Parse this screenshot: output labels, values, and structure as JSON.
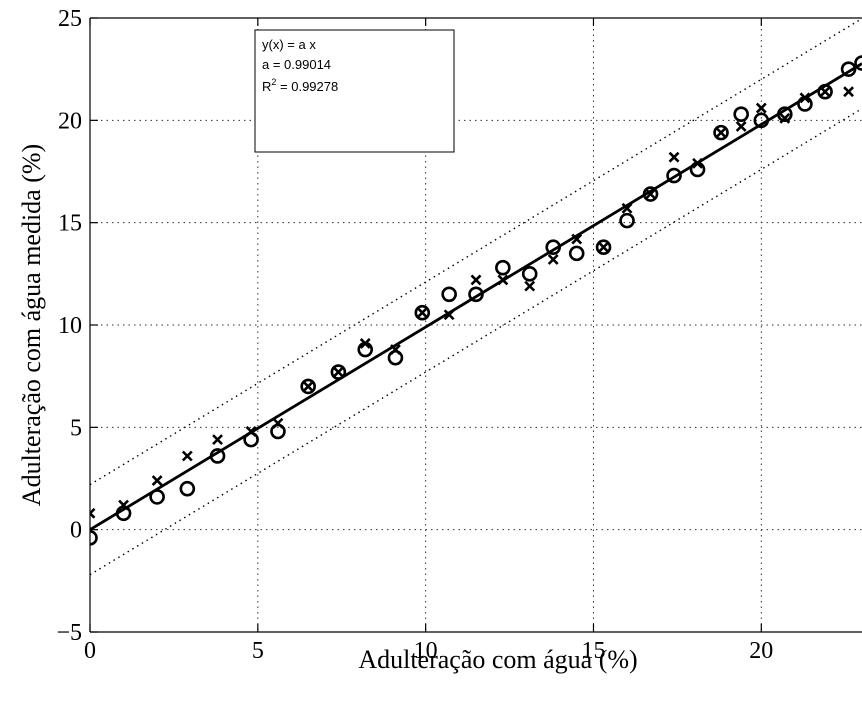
{
  "chart_data": {
    "type": "scatter",
    "xlabel": "Adulteração com água (%)",
    "ylabel": "Adulteração com água medida (%)",
    "xlim": [
      0,
      23
    ],
    "ylim": [
      -5,
      25
    ],
    "xticks": [
      0,
      5,
      10,
      15,
      20
    ],
    "yticks": [
      -5,
      0,
      5,
      10,
      15,
      20,
      25
    ],
    "grid": true,
    "legend_box": {
      "line1": "y(x) = a x",
      "line2": "a = 0.99014",
      "line3_prefix": "R",
      "line3_sup": "2",
      "line3_suffix": " = 0.99278"
    },
    "series": [
      {
        "marker": "circle",
        "x": [
          0.0,
          1.0,
          2.0,
          2.9,
          3.8,
          4.8,
          5.6,
          6.5,
          7.4,
          8.2,
          9.1,
          9.9,
          10.7,
          11.5,
          12.3,
          13.1,
          13.8,
          14.5,
          15.3,
          16.0,
          16.7,
          17.4,
          18.1,
          18.8,
          19.4,
          20.0,
          20.7,
          21.3,
          21.9,
          22.6,
          23.0
        ],
        "y": [
          -0.4,
          0.8,
          1.6,
          2.0,
          3.6,
          4.4,
          4.8,
          7.0,
          7.7,
          8.8,
          8.4,
          10.6,
          11.5,
          11.5,
          12.8,
          12.5,
          13.8,
          13.5,
          13.8,
          15.1,
          16.4,
          17.3,
          17.6,
          19.4,
          20.3,
          20.0,
          20.3,
          20.8,
          21.4,
          22.5,
          22.8
        ]
      },
      {
        "marker": "cross",
        "x": [
          0.0,
          1.0,
          2.0,
          2.9,
          3.8,
          4.8,
          5.6,
          6.5,
          7.4,
          8.2,
          9.1,
          9.9,
          10.7,
          11.5,
          12.3,
          13.1,
          13.8,
          14.5,
          15.3,
          16.0,
          16.7,
          17.4,
          18.1,
          18.8,
          19.4,
          20.0,
          20.7,
          21.3,
          21.9,
          22.6
        ],
        "y": [
          0.8,
          1.2,
          2.4,
          3.6,
          4.4,
          4.8,
          5.2,
          7.0,
          7.7,
          9.1,
          8.8,
          10.6,
          10.5,
          12.2,
          12.2,
          11.9,
          13.2,
          14.2,
          13.8,
          15.7,
          16.4,
          18.2,
          17.9,
          19.4,
          19.7,
          20.6,
          20.1,
          21.1,
          21.4,
          21.4
        ]
      }
    ],
    "fit": {
      "slope": 0.99014,
      "band": 2.2
    }
  }
}
